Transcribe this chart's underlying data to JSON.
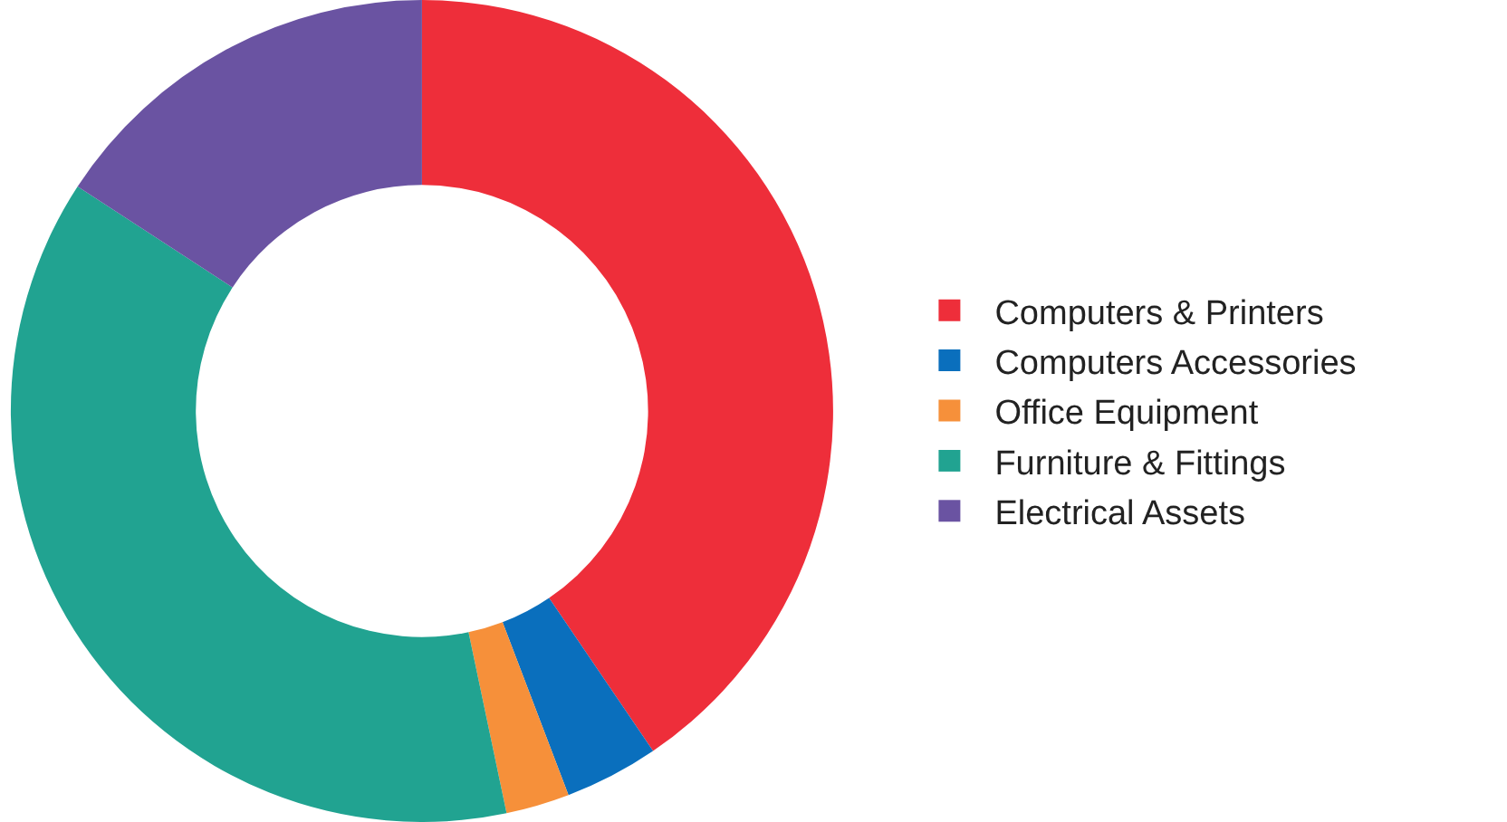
{
  "chart_data": {
    "type": "donut",
    "categories": [
      "Computers & Printers",
      "Computers Accessories",
      "Office Equipment",
      "Furniture & Fittings",
      "Electrical Assets"
    ],
    "values": [
      40.5,
      3.7,
      2.5,
      37.5,
      15.8
    ],
    "colors": [
      "#ee2e3a",
      "#0a6fbd",
      "#f6903a",
      "#21a391",
      "#6a53a2"
    ],
    "legend": "right"
  }
}
